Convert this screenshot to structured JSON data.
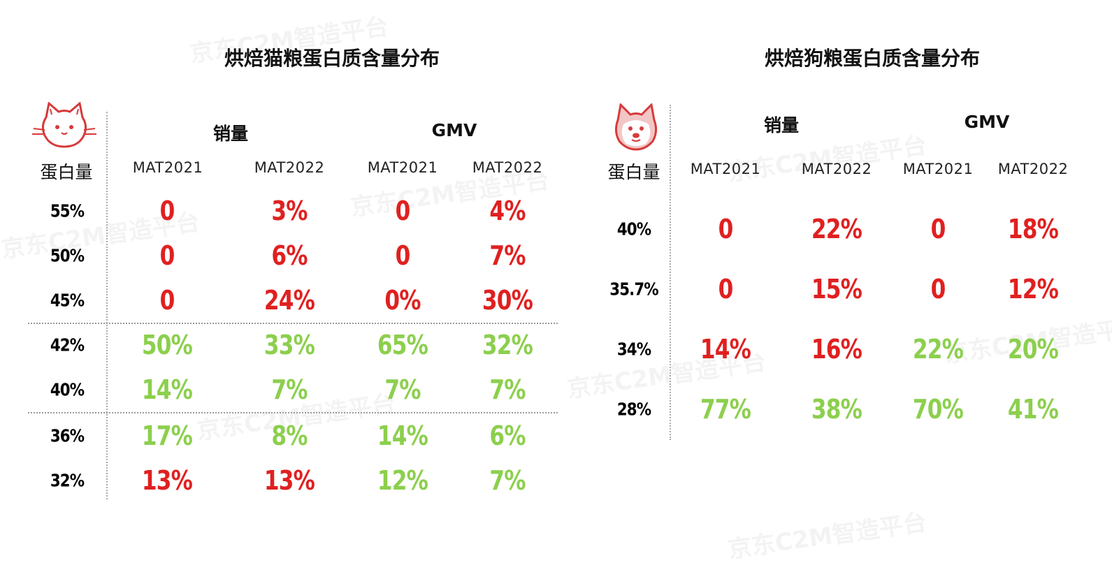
{
  "watermark": "京东C2M智造平台",
  "colors": {
    "high": "#e02020",
    "low": "#8ccf4d"
  },
  "chart_data": [
    {
      "type": "table",
      "title": "烘焙猫粮蛋白质含量分布",
      "icon": "cat-face-icon",
      "row_header": "蛋白量",
      "groups": [
        "销量",
        "GMV"
      ],
      "columns": [
        "MAT2021",
        "MAT2022",
        "MAT2021",
        "MAT2022"
      ],
      "rows": [
        {
          "label": "55%",
          "values": [
            "0",
            "3%",
            "0",
            "4%"
          ],
          "colors": [
            "red",
            "red",
            "red",
            "red"
          ]
        },
        {
          "label": "50%",
          "values": [
            "0",
            "6%",
            "0",
            "7%"
          ],
          "colors": [
            "red",
            "red",
            "red",
            "red"
          ]
        },
        {
          "label": "45%",
          "values": [
            "0",
            "24%",
            "0%",
            "30%"
          ],
          "colors": [
            "red",
            "red",
            "red",
            "red"
          ]
        },
        {
          "label": "42%",
          "values": [
            "50%",
            "33%",
            "65%",
            "32%"
          ],
          "colors": [
            "green",
            "green",
            "green",
            "green"
          ]
        },
        {
          "label": "40%",
          "values": [
            "14%",
            "7%",
            "7%",
            "7%"
          ],
          "colors": [
            "green",
            "green",
            "green",
            "green"
          ]
        },
        {
          "label": "36%",
          "values": [
            "17%",
            "8%",
            "14%",
            "6%"
          ],
          "colors": [
            "green",
            "green",
            "green",
            "green"
          ]
        },
        {
          "label": "32%",
          "values": [
            "13%",
            "13%",
            "12%",
            "7%"
          ],
          "colors": [
            "red",
            "red",
            "green",
            "green"
          ]
        }
      ]
    },
    {
      "type": "table",
      "title": "烘焙狗粮蛋白质含量分布",
      "icon": "dog-face-icon",
      "row_header": "蛋白量",
      "groups": [
        "销量",
        "GMV"
      ],
      "columns": [
        "MAT2021",
        "MAT2022",
        "MAT2021",
        "MAT2022"
      ],
      "rows": [
        {
          "label": "40%",
          "values": [
            "0",
            "22%",
            "0",
            "18%"
          ],
          "colors": [
            "red",
            "red",
            "red",
            "red"
          ]
        },
        {
          "label": "35.7%",
          "values": [
            "0",
            "15%",
            "0",
            "12%"
          ],
          "colors": [
            "red",
            "red",
            "red",
            "red"
          ]
        },
        {
          "label": "34%",
          "values": [
            "14%",
            "16%",
            "22%",
            "20%"
          ],
          "colors": [
            "red",
            "red",
            "green",
            "green"
          ]
        },
        {
          "label": "28%",
          "values": [
            "77%",
            "38%",
            "70%",
            "41%"
          ],
          "colors": [
            "green",
            "green",
            "green",
            "green"
          ]
        }
      ]
    }
  ]
}
